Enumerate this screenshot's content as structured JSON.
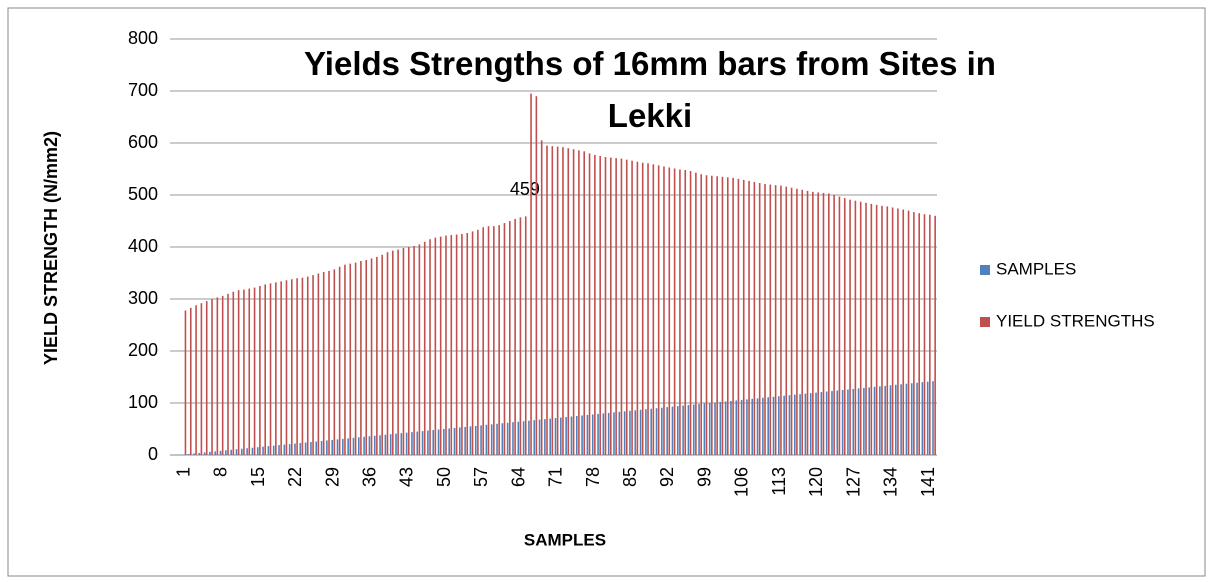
{
  "chart_data": {
    "type": "bar",
    "title": "Yields Strengths of 16mm bars from Sites in Lekki",
    "x_label": "SAMPLES",
    "y_label": "YIELD STRENGTH (N/mm2)",
    "categories": [
      "1",
      null,
      null,
      null,
      null,
      null,
      null,
      "8",
      null,
      null,
      null,
      null,
      null,
      null,
      "15",
      null,
      null,
      null,
      null,
      null,
      null,
      "22",
      null,
      null,
      null,
      null,
      null,
      null,
      "29",
      null,
      null,
      null,
      null,
      null,
      null,
      "36",
      null,
      null,
      null,
      null,
      null,
      null,
      "43",
      null,
      null,
      null,
      null,
      null,
      null,
      "50",
      null,
      null,
      null,
      null,
      null,
      null,
      "57",
      null,
      null,
      null,
      null,
      null,
      null,
      "64",
      null,
      null,
      null,
      null,
      null,
      null,
      "71",
      null,
      null,
      null,
      null,
      null,
      null,
      "78",
      null,
      null,
      null,
      null,
      null,
      null,
      "85",
      null,
      null,
      null,
      null,
      null,
      null,
      "92",
      null,
      null,
      null,
      null,
      null,
      null,
      "99",
      null,
      null,
      null,
      null,
      null,
      null,
      "106",
      null,
      null,
      null,
      null,
      null,
      null,
      "113",
      null,
      null,
      null,
      null,
      null,
      null,
      "120",
      null,
      null,
      null,
      null,
      null,
      null,
      "127",
      null,
      null,
      null,
      null,
      null,
      null,
      "134",
      null,
      null,
      null,
      null,
      null,
      null,
      "141",
      null
    ],
    "series": [
      {
        "name": "SAMPLES",
        "color": "#4f81bd",
        "values": [
          1,
          2,
          3,
          4,
          5,
          6,
          7,
          8,
          9,
          10,
          11,
          12,
          13,
          14,
          15,
          16,
          17,
          18,
          19,
          20,
          21,
          22,
          23,
          24,
          25,
          26,
          27,
          28,
          29,
          30,
          31,
          32,
          33,
          34,
          35,
          36,
          37,
          38,
          39,
          40,
          41,
          42,
          43,
          44,
          45,
          46,
          47,
          48,
          49,
          50,
          51,
          52,
          53,
          54,
          55,
          56,
          57,
          58,
          59,
          60,
          61,
          62,
          63,
          64,
          65,
          66,
          67,
          68,
          69,
          70,
          71,
          72,
          73,
          74,
          75,
          76,
          77,
          78,
          79,
          80,
          81,
          82,
          83,
          84,
          85,
          86,
          87,
          88,
          89,
          90,
          91,
          92,
          93,
          94,
          95,
          96,
          97,
          98,
          99,
          100,
          101,
          102,
          103,
          104,
          105,
          106,
          107,
          108,
          109,
          110,
          111,
          112,
          113,
          114,
          115,
          116,
          117,
          118,
          119,
          120,
          121,
          122,
          123,
          124,
          125,
          126,
          127,
          128,
          129,
          130,
          131,
          132,
          133,
          134,
          135,
          136,
          137,
          138,
          139,
          140,
          141,
          142
        ]
      },
      {
        "name": "YIELD STRENGTHS",
        "color": "#c0504d",
        "values": [
          278,
          283,
          288,
          292,
          296,
          300,
          303,
          306,
          310,
          314,
          317,
          318,
          320,
          322,
          325,
          328,
          330,
          332,
          334,
          336,
          338,
          340,
          341,
          343,
          346,
          349,
          352,
          354,
          357,
          362,
          366,
          368,
          370,
          373,
          375,
          378,
          381,
          385,
          390,
          393,
          395,
          398,
          400,
          402,
          405,
          410,
          415,
          418,
          420,
          422,
          423,
          424,
          425,
          427,
          430,
          433,
          438,
          440,
          440,
          442,
          446,
          450,
          454,
          457,
          459,
          695,
          690,
          605,
          595,
          594,
          593,
          592,
          590,
          588,
          586,
          584,
          580,
          577,
          575,
          573,
          572,
          571,
          570,
          568,
          566,
          564,
          562,
          561,
          559,
          557,
          555,
          553,
          551,
          549,
          548,
          546,
          543,
          540,
          538,
          537,
          536,
          535,
          534,
          533,
          531,
          529,
          527,
          525,
          523,
          521,
          520,
          519,
          518,
          516,
          514,
          512,
          510,
          508,
          506,
          505,
          504,
          503,
          500,
          497,
          494,
          491,
          489,
          487,
          485,
          483,
          481,
          479,
          478,
          476,
          474,
          472,
          470,
          467,
          465,
          463,
          462,
          460
        ],
        "value_labels": [
          null,
          null,
          null,
          null,
          null,
          null,
          null,
          null,
          null,
          null,
          null,
          null,
          null,
          null,
          null,
          null,
          null,
          null,
          null,
          null,
          null,
          null,
          null,
          null,
          null,
          null,
          null,
          null,
          null,
          null,
          null,
          null,
          null,
          null,
          null,
          null,
          null,
          null,
          null,
          null,
          null,
          null,
          null,
          null,
          null,
          null,
          null,
          null,
          null,
          null,
          null,
          null,
          null,
          null,
          null,
          null,
          null,
          null,
          null,
          null,
          null,
          null,
          null,
          null,
          "459",
          null,
          null,
          null,
          null,
          null,
          null,
          null,
          null,
          null,
          null,
          null,
          null,
          null,
          null,
          null,
          null,
          null,
          null,
          null,
          null,
          null,
          null,
          null,
          null,
          null,
          null,
          null,
          null,
          null,
          null,
          null,
          null,
          null,
          null,
          null,
          null,
          null,
          null,
          null,
          null,
          null,
          null,
          null,
          null,
          null,
          null,
          null,
          null,
          null,
          null,
          null,
          null,
          null,
          null,
          null,
          null,
          null,
          null,
          null,
          null,
          null,
          null,
          null,
          null,
          null,
          null,
          null,
          null,
          null,
          null,
          null,
          null,
          null,
          null,
          null,
          null,
          null
        ]
      }
    ],
    "ylim": [
      0,
      800
    ],
    "yticks": [
      0,
      100,
      200,
      300,
      400,
      500,
      600,
      700,
      800
    ],
    "grid": true,
    "legend": "right"
  }
}
